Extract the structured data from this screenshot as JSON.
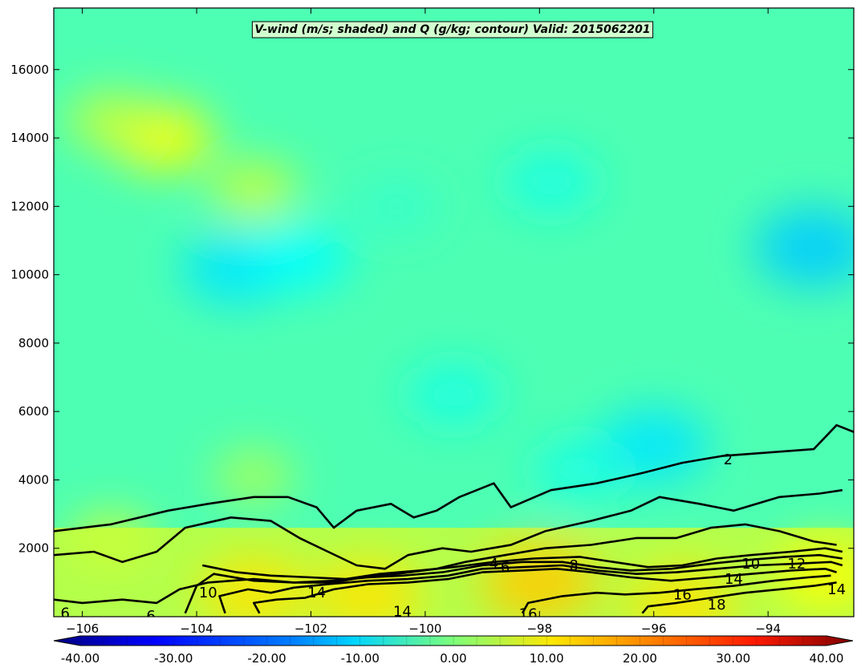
{
  "chart_data": {
    "type": "heatmap",
    "title": "V-wind (m/s; shaded) and Q (g/kg; contour) Valid: 2015062201",
    "xlabel": "",
    "ylabel": "",
    "xlim": [
      -106.5,
      -92.5
    ],
    "ylim": [
      0,
      17800
    ],
    "x_ticks": [
      -106,
      -104,
      -102,
      -100,
      -98,
      -96,
      -94
    ],
    "x_tick_labels": [
      "−106",
      "−104",
      "−102",
      "−100",
      "−98",
      "−96",
      "−94"
    ],
    "y_ticks": [
      2000,
      4000,
      6000,
      8000,
      10000,
      12000,
      14000,
      16000
    ],
    "y_tick_labels": [
      "2000",
      "4000",
      "6000",
      "8000",
      "10000",
      "12000",
      "14000",
      "16000"
    ],
    "shading": {
      "variable": "V-wind",
      "units": "m/s",
      "colorbar_range": [
        -40,
        40
      ],
      "colorbar_ticks": [
        -40,
        -30,
        -20,
        -10,
        0,
        10,
        20,
        30,
        40
      ],
      "colorbar_tick_labels": [
        "-40.00",
        "-30.00",
        "-20.00",
        "-10.00",
        "0.00",
        "10.00",
        "20.00",
        "30.00",
        "40.00"
      ],
      "colormap": "jet",
      "fields": [
        {
          "x": -104.6,
          "y": 14000,
          "value": 10
        },
        {
          "x": -105.5,
          "y": 14500,
          "value": 6
        },
        {
          "x": -103.0,
          "y": 12500,
          "value": 6
        },
        {
          "x": -103.3,
          "y": 10200,
          "value": -12
        },
        {
          "x": -102.2,
          "y": 10500,
          "value": -10
        },
        {
          "x": -100.5,
          "y": 12000,
          "value": -6
        },
        {
          "x": -97.8,
          "y": 12700,
          "value": -8
        },
        {
          "x": -93.2,
          "y": 10800,
          "value": -14
        },
        {
          "x": -96.0,
          "y": 5000,
          "value": -12
        },
        {
          "x": -97.3,
          "y": 4300,
          "value": -8
        },
        {
          "x": -99.5,
          "y": 6500,
          "value": -8
        },
        {
          "x": -103.0,
          "y": 4100,
          "value": 4
        },
        {
          "x": -105.5,
          "y": 2200,
          "value": 6
        },
        {
          "x": -101.0,
          "y": 600,
          "value": 12
        },
        {
          "x": -98.0,
          "y": 1000,
          "value": 14
        },
        {
          "x": -95.5,
          "y": 400,
          "value": 12
        },
        {
          "x": -103.0,
          "y": 700,
          "value": 12
        },
        {
          "x": -93.0,
          "y": 1200,
          "value": 10
        }
      ]
    },
    "contours": {
      "variable": "Q",
      "units": "g/kg",
      "lines": [
        {
          "level": 2,
          "points": [
            [
              -106.5,
              2500
            ],
            [
              -105.5,
              2700
            ],
            [
              -104.5,
              3100
            ],
            [
              -103.8,
              3300
            ],
            [
              -103.0,
              3500
            ],
            [
              -102.4,
              3500
            ],
            [
              -101.9,
              3200
            ],
            [
              -101.6,
              2600
            ],
            [
              -101.2,
              3100
            ],
            [
              -100.6,
              3300
            ],
            [
              -100.2,
              2900
            ],
            [
              -99.8,
              3100
            ],
            [
              -99.4,
              3500
            ],
            [
              -98.8,
              3900
            ],
            [
              -98.5,
              3200
            ],
            [
              -97.8,
              3700
            ],
            [
              -97.0,
              3900
            ],
            [
              -96.2,
              4200
            ],
            [
              -95.5,
              4500
            ],
            [
              -94.8,
              4700
            ],
            [
              -94.0,
              4800
            ],
            [
              -93.2,
              4900
            ],
            [
              -92.8,
              5600
            ],
            [
              -92.5,
              5400
            ]
          ]
        },
        {
          "level": 4,
          "points": [
            [
              -106.5,
              1800
            ],
            [
              -105.8,
              1900
            ],
            [
              -105.3,
              1600
            ],
            [
              -104.7,
              1900
            ],
            [
              -104.2,
              2600
            ],
            [
              -103.4,
              2900
            ],
            [
              -102.7,
              2800
            ],
            [
              -102.2,
              2300
            ],
            [
              -101.7,
              1900
            ],
            [
              -101.2,
              1500
            ],
            [
              -100.7,
              1400
            ],
            [
              -100.3,
              1800
            ],
            [
              -99.7,
              2000
            ],
            [
              -99.2,
              1900
            ],
            [
              -98.5,
              2100
            ],
            [
              -97.9,
              2500
            ],
            [
              -97.1,
              2800
            ],
            [
              -96.4,
              3100
            ],
            [
              -95.9,
              3500
            ],
            [
              -95.2,
              3300
            ],
            [
              -94.6,
              3100
            ],
            [
              -93.8,
              3500
            ],
            [
              -93.1,
              3600
            ],
            [
              -92.7,
              3700
            ]
          ]
        },
        {
          "level": 6,
          "points": [
            [
              -106.5,
              500
            ],
            [
              -106.0,
              400
            ],
            [
              -105.3,
              500
            ],
            [
              -104.7,
              400
            ],
            [
              -104.3,
              800
            ],
            [
              -103.8,
              1000
            ],
            [
              -103.0,
              1100
            ],
            [
              -102.3,
              1000
            ],
            [
              -101.6,
              1000
            ],
            [
              -101.1,
              1150
            ],
            [
              -100.5,
              1250
            ],
            [
              -99.8,
              1400
            ],
            [
              -99.3,
              1600
            ],
            [
              -98.6,
              1800
            ],
            [
              -97.9,
              2000
            ],
            [
              -97.1,
              2100
            ],
            [
              -96.3,
              2300
            ],
            [
              -95.6,
              2300
            ],
            [
              -95.0,
              2600
            ],
            [
              -94.4,
              2700
            ],
            [
              -93.8,
              2500
            ],
            [
              -93.2,
              2200
            ],
            [
              -92.8,
              2100
            ]
          ]
        },
        {
          "level": 8,
          "points": [
            [
              -103.9,
              1500
            ],
            [
              -103.3,
              1300
            ],
            [
              -102.7,
              1200
            ],
            [
              -102.0,
              1150
            ],
            [
              -101.4,
              1100
            ],
            [
              -100.8,
              1250
            ],
            [
              -100.1,
              1350
            ],
            [
              -99.5,
              1450
            ],
            [
              -98.8,
              1600
            ],
            [
              -98.1,
              1700
            ],
            [
              -97.3,
              1750
            ],
            [
              -96.7,
              1600
            ],
            [
              -96.1,
              1450
            ],
            [
              -95.5,
              1500
            ],
            [
              -94.9,
              1700
            ],
            [
              -94.3,
              1800
            ],
            [
              -93.6,
              1900
            ],
            [
              -93.0,
              2000
            ],
            [
              -92.7,
              1900
            ]
          ]
        },
        {
          "level": 10,
          "points": [
            [
              -104.2,
              100
            ],
            [
              -104.0,
              900
            ],
            [
              -103.7,
              1250
            ],
            [
              -103.0,
              1050
            ],
            [
              -102.3,
              1000
            ],
            [
              -101.6,
              1050
            ],
            [
              -101.0,
              1150
            ],
            [
              -100.4,
              1200
            ],
            [
              -99.7,
              1300
            ],
            [
              -99.0,
              1500
            ],
            [
              -98.3,
              1600
            ],
            [
              -97.6,
              1600
            ],
            [
              -97.0,
              1450
            ],
            [
              -96.4,
              1350
            ],
            [
              -95.7,
              1400
            ],
            [
              -95.0,
              1550
            ],
            [
              -94.4,
              1650
            ],
            [
              -93.7,
              1750
            ],
            [
              -93.1,
              1800
            ],
            [
              -92.7,
              1700
            ]
          ]
        },
        {
          "level": 12,
          "points": [
            [
              -103.5,
              100
            ],
            [
              -103.6,
              600
            ],
            [
              -103.1,
              800
            ],
            [
              -102.7,
              700
            ],
            [
              -102.3,
              850
            ],
            [
              -101.7,
              950
            ],
            [
              -101.0,
              1050
            ],
            [
              -100.3,
              1100
            ],
            [
              -99.6,
              1200
            ],
            [
              -99.0,
              1400
            ],
            [
              -98.3,
              1450
            ],
            [
              -97.6,
              1500
            ],
            [
              -97.0,
              1350
            ],
            [
              -96.3,
              1250
            ],
            [
              -95.6,
              1300
            ],
            [
              -94.9,
              1400
            ],
            [
              -94.2,
              1500
            ],
            [
              -93.5,
              1550
            ],
            [
              -92.9,
              1600
            ],
            [
              -92.7,
              1500
            ]
          ]
        },
        {
          "level": 14,
          "points": [
            [
              -102.9,
              100
            ],
            [
              -103.0,
              400
            ],
            [
              -102.6,
              500
            ],
            [
              -102.1,
              550
            ],
            [
              -101.6,
              800
            ],
            [
              -101.0,
              950
            ],
            [
              -100.3,
              1000
            ],
            [
              -99.6,
              1100
            ],
            [
              -99.0,
              1300
            ],
            [
              -98.3,
              1350
            ],
            [
              -97.7,
              1400
            ],
            [
              -97.1,
              1300
            ],
            [
              -96.4,
              1150
            ],
            [
              -95.7,
              1050
            ],
            [
              -95.0,
              1150
            ],
            [
              -94.3,
              1250
            ],
            [
              -93.6,
              1350
            ],
            [
              -93.0,
              1400
            ],
            [
              -92.8,
              1300
            ]
          ]
        },
        {
          "level": 16,
          "points": [
            [
              -98.3,
              100
            ],
            [
              -98.2,
              400
            ],
            [
              -97.6,
              600
            ],
            [
              -97.0,
              700
            ],
            [
              -96.5,
              650
            ],
            [
              -95.9,
              700
            ],
            [
              -95.3,
              800
            ],
            [
              -94.6,
              900
            ],
            [
              -93.9,
              1050
            ],
            [
              -93.3,
              1150
            ],
            [
              -92.9,
              1200
            ]
          ]
        },
        {
          "level": 18,
          "points": [
            [
              -96.2,
              100
            ],
            [
              -96.1,
              300
            ],
            [
              -95.6,
              400
            ],
            [
              -95.0,
              550
            ],
            [
              -94.4,
              700
            ],
            [
              -93.8,
              800
            ],
            [
              -93.2,
              900
            ],
            [
              -92.8,
              1000
            ]
          ]
        }
      ],
      "labels": [
        {
          "text": "2",
          "x": -94.7,
          "y": 4600
        },
        {
          "text": "4",
          "x": -98.8,
          "y": 1550
        },
        {
          "text": "6",
          "x": -98.6,
          "y": 1450
        },
        {
          "text": "8",
          "x": -97.4,
          "y": 1500
        },
        {
          "text": "10",
          "x": -94.3,
          "y": 1550
        },
        {
          "text": "12",
          "x": -93.5,
          "y": 1550
        },
        {
          "text": "14",
          "x": -94.6,
          "y": 1100
        },
        {
          "text": "16",
          "x": -95.5,
          "y": 650
        },
        {
          "text": "18",
          "x": -94.9,
          "y": 350
        },
        {
          "text": "14",
          "x": -101.9,
          "y": 700
        },
        {
          "text": "10",
          "x": -103.8,
          "y": 700
        },
        {
          "text": "14",
          "x": -100.4,
          "y": 150
        },
        {
          "text": "16",
          "x": -98.2,
          "y": 80
        },
        {
          "text": "6",
          "x": -106.3,
          "y": 100
        },
        {
          "text": "6",
          "x": -104.8,
          "y": 20
        },
        {
          "text": "14",
          "x": -92.8,
          "y": 800
        }
      ]
    }
  }
}
